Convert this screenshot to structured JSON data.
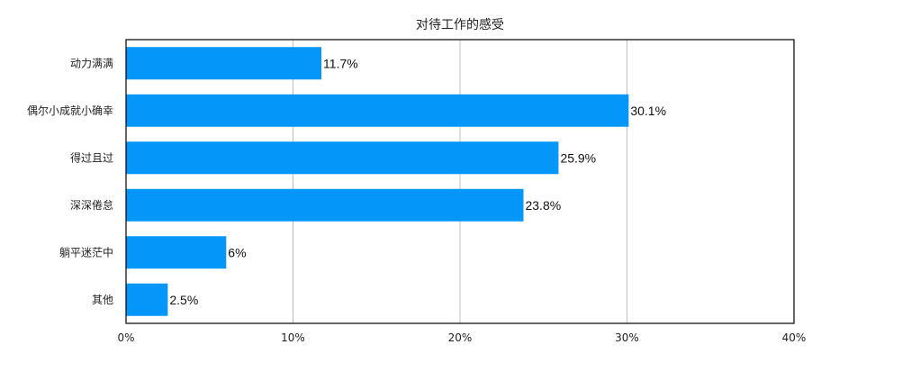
{
  "chart_data": {
    "type": "bar",
    "orientation": "horizontal",
    "title": "对待工作的感受",
    "xlabel": "",
    "ylabel": "",
    "categories": [
      "动力满满",
      "偶尔小成就小确幸",
      "得过且过",
      "深深倦怠",
      "躺平迷茫中",
      "其他"
    ],
    "values": [
      11.7,
      30.1,
      25.9,
      23.8,
      6,
      2.5
    ],
    "data_labels": [
      "11.7%",
      "30.1%",
      "25.9%",
      "23.8%",
      "6%",
      "2.5%"
    ],
    "xlim": [
      0,
      40
    ],
    "x_ticks": [
      0,
      10,
      20,
      30,
      40
    ],
    "x_tick_labels": [
      "0%",
      "10%",
      "20%",
      "30%",
      "40%"
    ],
    "grid": "vertical",
    "legend": "none",
    "colors": {
      "bar": "#0596fa",
      "grid": "#c0c0c0",
      "frame": "#000000",
      "text": "#222222"
    }
  }
}
